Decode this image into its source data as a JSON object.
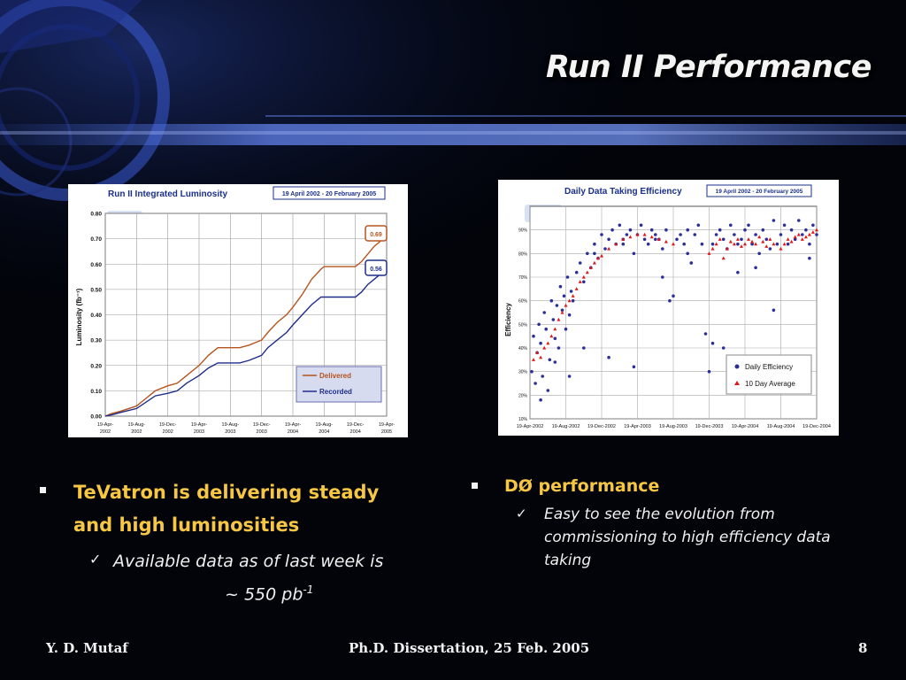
{
  "slide": {
    "title": "Run II Performance"
  },
  "luminosity_chart": {
    "title": "Run II Integrated Luminosity",
    "date_range": "19 April 2002 - 20 February 2005",
    "logo": "DØ",
    "ylabel": "Luminosity (fb⁻¹)",
    "callout_delivered": "0.69",
    "callout_recorded": "0.56",
    "legend": [
      "Delivered",
      "Recorded"
    ]
  },
  "efficiency_chart": {
    "title": "Daily Data Taking Efficiency",
    "date_range": "19 April 2002 - 20 February 2005",
    "logo": "DØ",
    "ylabel": "Efficiency",
    "legend": [
      "Daily Efficiency",
      "10 Day Average"
    ]
  },
  "chart_data": [
    {
      "type": "line",
      "title": "Run II Integrated Luminosity",
      "ylabel": "Luminosity (fb⁻¹)",
      "ylim": [
        0,
        0.8
      ],
      "yticks": [
        "0.00",
        "0.10",
        "0.20",
        "0.30",
        "0.40",
        "0.50",
        "0.60",
        "0.70",
        "0.80"
      ],
      "xticks": [
        [
          "19-Apr-",
          "2002"
        ],
        [
          "19-Aug-",
          "2002"
        ],
        [
          "19-Dec-",
          "2002"
        ],
        [
          "19-Apr-",
          "2003"
        ],
        [
          "19-Aug-",
          "2003"
        ],
        [
          "19-Dec-",
          "2003"
        ],
        [
          "19-Apr-",
          "2004"
        ],
        [
          "19-Aug-",
          "2004"
        ],
        [
          "19-Dec-",
          "2004"
        ],
        [
          "19-Apr-",
          "2005"
        ]
      ],
      "grid": true,
      "legend_position": "bottom-right",
      "series": [
        {
          "name": "Delivered",
          "color": "#b5541e",
          "x": [
            0,
            0.2,
            0.5,
            1,
            1.3,
            1.6,
            2,
            2.3,
            2.6,
            3,
            3.3,
            3.6,
            4,
            4.3,
            4.6,
            5,
            5.2,
            5.5,
            5.8,
            6,
            6.3,
            6.6,
            6.9,
            7,
            7.3,
            7.6,
            8,
            8.2,
            8.4,
            8.6,
            8.8
          ],
          "y": [
            0,
            0.01,
            0.02,
            0.04,
            0.07,
            0.1,
            0.12,
            0.13,
            0.16,
            0.2,
            0.24,
            0.27,
            0.27,
            0.27,
            0.28,
            0.3,
            0.33,
            0.37,
            0.4,
            0.43,
            0.48,
            0.54,
            0.58,
            0.59,
            0.59,
            0.59,
            0.59,
            0.61,
            0.64,
            0.67,
            0.69
          ]
        },
        {
          "name": "Recorded",
          "color": "#1f2d8a",
          "x": [
            0,
            0.2,
            0.5,
            1,
            1.3,
            1.6,
            2,
            2.3,
            2.6,
            3,
            3.3,
            3.6,
            4,
            4.3,
            4.6,
            5,
            5.2,
            5.5,
            5.8,
            6,
            6.3,
            6.6,
            6.9,
            7,
            7.3,
            7.6,
            8,
            8.2,
            8.4,
            8.6,
            8.8
          ],
          "y": [
            0,
            0.005,
            0.015,
            0.03,
            0.055,
            0.08,
            0.09,
            0.1,
            0.13,
            0.16,
            0.19,
            0.21,
            0.21,
            0.21,
            0.22,
            0.24,
            0.27,
            0.3,
            0.33,
            0.36,
            0.4,
            0.44,
            0.47,
            0.47,
            0.47,
            0.47,
            0.47,
            0.49,
            0.52,
            0.54,
            0.56
          ]
        }
      ]
    },
    {
      "type": "scatter",
      "title": "Daily Data Taking Efficiency",
      "ylabel": "Efficiency",
      "ylim": [
        10,
        100
      ],
      "yticks": [
        "10%",
        "20%",
        "30%",
        "40%",
        "50%",
        "60%",
        "70%",
        "80%",
        "90%"
      ],
      "xticks": [
        "19-Apr-2002",
        "19-Aug-2002",
        "19-Dec-2002",
        "19-Apr-2003",
        "19-Aug-2003",
        "19-Dec-2003",
        "19-Apr-2004",
        "19-Aug-2004",
        "19-Dec-2004"
      ],
      "grid": true,
      "legend_position": "bottom-right",
      "series": [
        {
          "name": "Daily Efficiency",
          "color": "#2b2f9a",
          "x": [
            0.05,
            0.1,
            0.15,
            0.2,
            0.25,
            0.3,
            0.35,
            0.4,
            0.45,
            0.5,
            0.55,
            0.6,
            0.65,
            0.7,
            0.75,
            0.8,
            0.85,
            0.9,
            0.95,
            1.0,
            1.05,
            1.1,
            1.15,
            1.2,
            1.3,
            1.4,
            1.5,
            1.6,
            1.7,
            1.8,
            1.9,
            2.0,
            2.1,
            2.2,
            2.3,
            2.4,
            2.5,
            2.6,
            2.7,
            2.8,
            2.9,
            3.0,
            3.1,
            3.2,
            3.3,
            3.4,
            3.5,
            3.6,
            3.7,
            3.8,
            3.9,
            4.0,
            4.1,
            4.2,
            4.3,
            4.4,
            4.5,
            4.6,
            4.7,
            4.8,
            4.9,
            5.0,
            5.1,
            5.2,
            5.3,
            5.4,
            5.5,
            5.6,
            5.7,
            5.8,
            5.9,
            6.0,
            6.1,
            6.2,
            6.3,
            6.4,
            6.5,
            6.6,
            6.7,
            6.8,
            7.0,
            7.1,
            7.2,
            7.3,
            7.4,
            7.5,
            7.6,
            7.7,
            7.8,
            7.9,
            8.0,
            0.3,
            0.7,
            1.1,
            1.5,
            2.2,
            2.9,
            3.7,
            4.5,
            5.1,
            5.4,
            5.6,
            6.3,
            6.8,
            7.8,
            1.8,
            2.6,
            3.5,
            4.4,
            5.8,
            6.9
          ],
          "y": [
            30,
            45,
            25,
            38,
            50,
            42,
            28,
            55,
            48,
            22,
            35,
            60,
            52,
            44,
            58,
            40,
            66,
            56,
            62,
            48,
            70,
            54,
            64,
            60,
            72,
            76,
            68,
            80,
            74,
            84,
            78,
            88,
            82,
            86,
            90,
            84,
            92,
            86,
            88,
            90,
            80,
            88,
            92,
            86,
            84,
            90,
            88,
            86,
            82,
            90,
            60,
            62,
            86,
            88,
            84,
            90,
            76,
            88,
            92,
            84,
            46,
            30,
            84,
            88,
            90,
            86,
            82,
            92,
            88,
            84,
            86,
            90,
            92,
            84,
            88,
            80,
            90,
            86,
            82,
            94,
            88,
            92,
            84,
            90,
            86,
            94,
            88,
            90,
            84,
            92,
            88,
            18,
            34,
            28,
            40,
            36,
            32,
            70,
            76,
            42,
            40,
            26,
            74,
            56,
            78,
            80,
            84,
            86,
            80,
            72,
            84
          ]
        },
        {
          "name": "10 Day Average",
          "color": "#e01818",
          "x": [
            0.1,
            0.2,
            0.3,
            0.4,
            0.5,
            0.6,
            0.7,
            0.8,
            0.9,
            1.0,
            1.1,
            1.2,
            1.3,
            1.4,
            1.5,
            1.6,
            1.7,
            1.8,
            1.9,
            2.0,
            2.2,
            2.4,
            2.6,
            2.8,
            3.0,
            3.2,
            3.4,
            3.6,
            3.8,
            4.0,
            5.0,
            5.1,
            5.2,
            5.3,
            5.4,
            5.5,
            5.6,
            5.7,
            5.8,
            5.9,
            6.0,
            6.1,
            6.2,
            6.3,
            6.4,
            6.5,
            6.6,
            6.7,
            6.8,
            7.0,
            7.1,
            7.2,
            7.3,
            7.4,
            7.5,
            7.6,
            7.7,
            7.8,
            7.9,
            8.0
          ],
          "y": [
            35,
            38,
            36,
            40,
            42,
            45,
            48,
            52,
            55,
            58,
            60,
            62,
            65,
            68,
            70,
            72,
            74,
            76,
            78,
            79,
            82,
            84,
            86,
            87,
            88,
            88,
            87,
            86,
            85,
            84,
            80,
            82,
            84,
            86,
            78,
            82,
            85,
            84,
            86,
            83,
            84,
            86,
            85,
            84,
            87,
            85,
            83,
            86,
            84,
            82,
            84,
            86,
            85,
            87,
            88,
            86,
            87,
            88,
            89,
            90
          ]
        }
      ]
    }
  ],
  "left_bullets": {
    "main": [
      "TeVatron is delivering steady",
      "and high luminosities"
    ],
    "sub_line1": "Available data as of last week is",
    "sub_line2": "~ 550 pb",
    "sub_sup": "-1"
  },
  "right_bullets": {
    "main": "DØ performance",
    "sub": [
      "Easy to see the evolution from",
      "commissioning to high efficiency data",
      "taking"
    ]
  },
  "footer": {
    "left": "Y. D. Mutaf",
    "center": "Ph.D. Dissertation, 25 Feb. 2005",
    "right": "8"
  }
}
